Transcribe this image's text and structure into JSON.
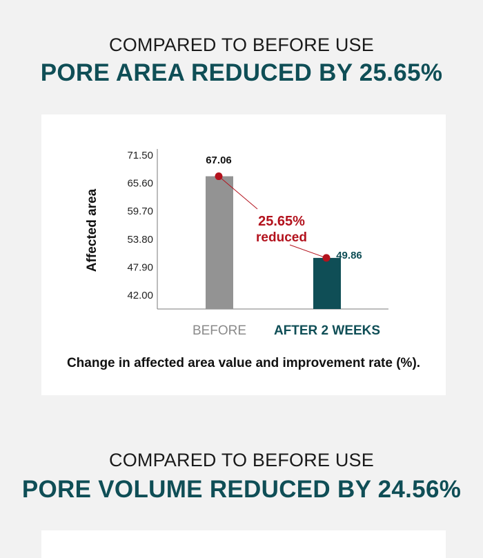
{
  "sections": [
    {
      "kicker": "COMPARED TO BEFORE USE",
      "headline": "PORE AREA REDUCED BY 25.65%",
      "caption": "Change in affected area value and improvement rate (%)."
    },
    {
      "kicker": "COMPARED TO BEFORE USE",
      "headline": "PORE VOLUME REDUCED BY 24.56%"
    }
  ],
  "colors": {
    "accent": "#0f4e56",
    "before_bar": "#939393",
    "reduction": "#b3121d",
    "page_bg": "#f2f2f2"
  },
  "chart_data": {
    "type": "bar",
    "ylabel": "Affected area",
    "xlabel": "",
    "title": "",
    "ylim": [
      42.0,
      71.5
    ],
    "yticks": [
      "71.50",
      "65.60",
      "59.70",
      "53.80",
      "47.90",
      "42.00"
    ],
    "categories": [
      "BEFORE",
      "AFTER 2 WEEKS"
    ],
    "values": [
      67.06,
      49.86
    ],
    "data_labels": [
      "67.06",
      "49.86"
    ],
    "annotation": {
      "line1": "25.65%",
      "line2": "reduced"
    },
    "grid": false
  }
}
